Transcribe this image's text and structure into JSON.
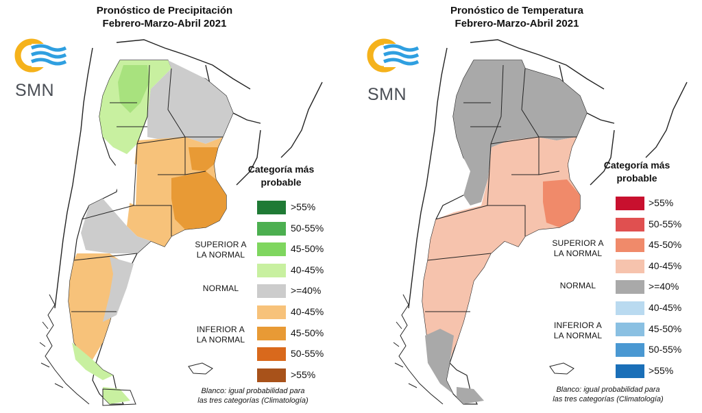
{
  "precipitation": {
    "title_line1": "Pronóstico de Precipitación",
    "title_line2": "Febrero-Marzo-Abril 2021",
    "logo_text": "SMN",
    "legend_title_line1": "Categoría más",
    "legend_title_line2": "probable",
    "legend": [
      {
        "label": ">55%",
        "color": "#1f7a35"
      },
      {
        "label": "50-55%",
        "color": "#4caf50"
      },
      {
        "label": "45-50%",
        "color": "#7fd65f"
      },
      {
        "label": "40-45%",
        "color": "#c8f0a0"
      },
      {
        "label": ">=40%",
        "color": "#cccccc"
      },
      {
        "label": "40-45%",
        "color": "#f7c27a"
      },
      {
        "label": "45-50%",
        "color": "#e89a35"
      },
      {
        "label": "50-55%",
        "color": "#d9691c"
      },
      {
        "label": ">55%",
        "color": "#a8521a"
      }
    ],
    "category_superior_line1": "SUPERIOR A",
    "category_superior_line2": "LA NORMAL",
    "category_normal": "NORMAL",
    "category_inferior_line1": "INFERIOR A",
    "category_inferior_line2": "LA NORMAL",
    "footnote_line1": "Blanco: igual probabilidad para",
    "footnote_line2": "las tres categorías (Climatología)"
  },
  "temperature": {
    "title_line1": "Pronóstico de Temperatura",
    "title_line2": "Febrero-Marzo-Abril 2021",
    "logo_text": "SMN",
    "legend_title_line1": "Categoría más",
    "legend_title_line2": "probable",
    "legend": [
      {
        "label": ">55%",
        "color": "#c8102e"
      },
      {
        "label": "50-55%",
        "color": "#e05050"
      },
      {
        "label": "45-50%",
        "color": "#f08a6a"
      },
      {
        "label": "40-45%",
        "color": "#f6c3ad"
      },
      {
        "label": ">=40%",
        "color": "#a9a9a9"
      },
      {
        "label": "40-45%",
        "color": "#b9daf0"
      },
      {
        "label": "45-50%",
        "color": "#8ac0e2"
      },
      {
        "label": "50-55%",
        "color": "#4a98d2"
      },
      {
        "label": ">55%",
        "color": "#1a6fb8"
      }
    ],
    "category_superior_line1": "SUPERIOR A",
    "category_superior_line2": "LA NORMAL",
    "category_normal": "NORMAL",
    "category_inferior_line1": "INFERIOR A",
    "category_inferior_line2": "LA NORMAL",
    "footnote_line1": "Blanco: igual probabilidad para",
    "footnote_line2": "las tres categorías (Climatología)"
  },
  "colors": {
    "logo_sun": "#f5b21b",
    "logo_waves": "#2f9fe0",
    "border": "#222222"
  }
}
